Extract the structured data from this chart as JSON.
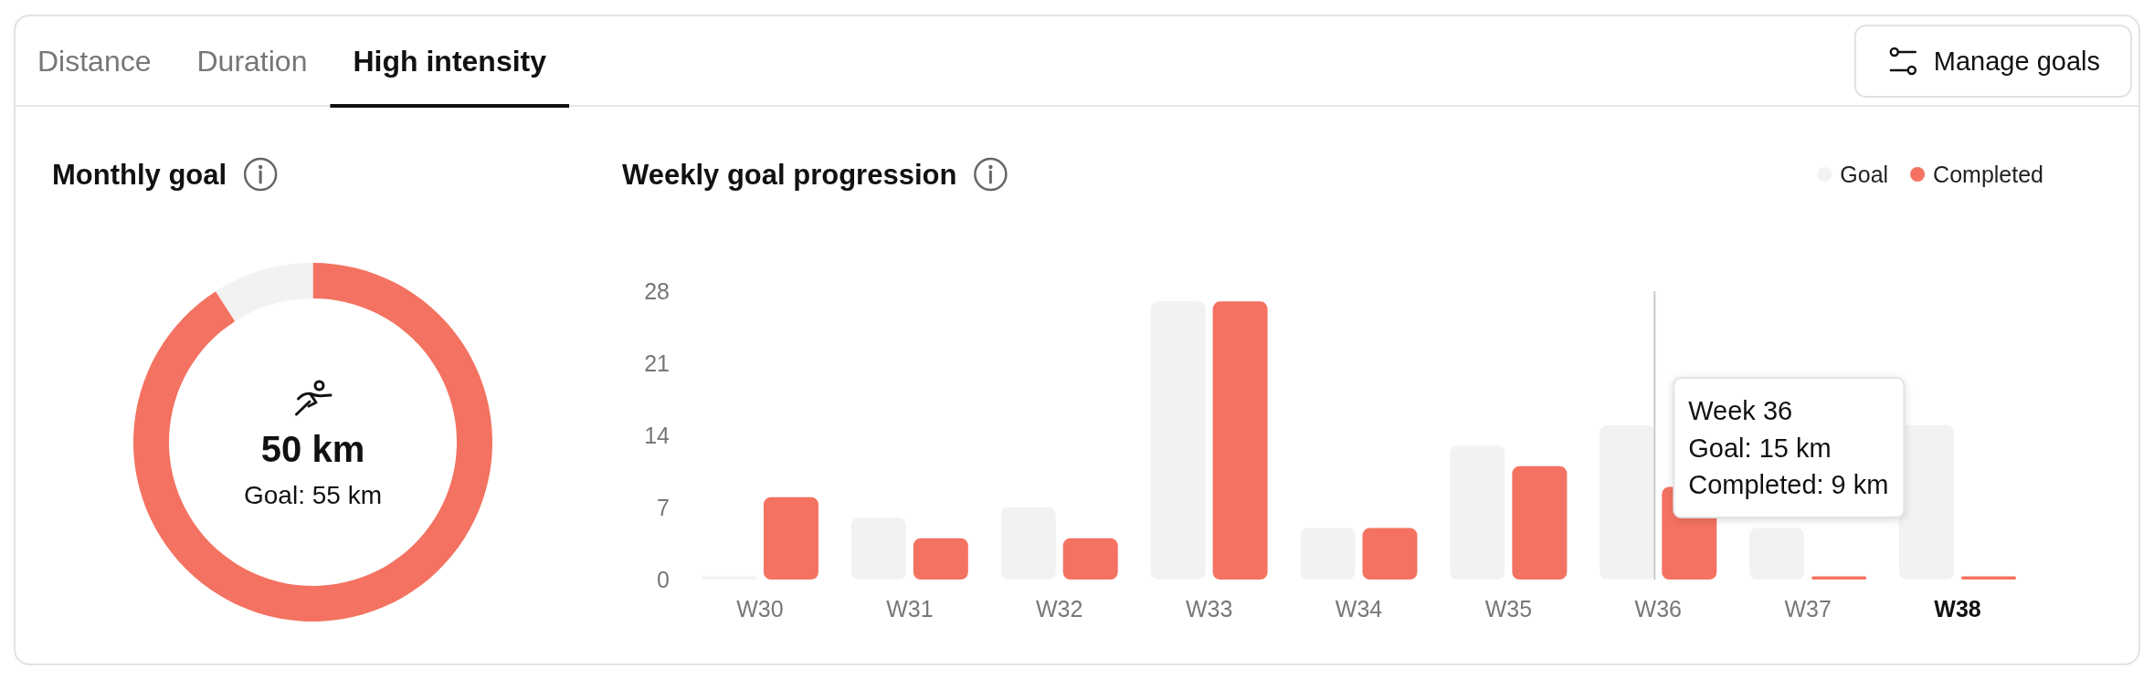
{
  "chart_data": [
    {
      "type": "other",
      "annotations": [
        "Distance",
        "Duration",
        "High intensity",
        "Manage goals"
      ]
    },
    {
      "type": "donut",
      "title": "Monthly goal",
      "categories": [
        null,
        null
      ],
      "values": [
        90.9,
        9.1
      ],
      "colors": [
        "#f47261",
        "#f2f2f2"
      ],
      "annotations": [
        "50 km",
        "Goal: 55 km"
      ]
    },
    {
      "type": "bar",
      "title": "Weekly goal progression",
      "categories": [
        "W30",
        "W31",
        "W32",
        "W33",
        "W34",
        "W35",
        "W36",
        "W37",
        "W38"
      ],
      "series": [
        {
          "name": "Goal",
          "color": "#f2f2f2",
          "values": [
            0.3,
            6,
            7,
            27,
            5,
            13,
            15,
            5,
            15
          ]
        },
        {
          "name": "Completed",
          "color": "#f47261",
          "values": [
            8,
            4,
            4,
            27,
            5,
            11,
            9,
            0.3,
            0.3
          ]
        }
      ],
      "ylim": [
        0,
        28
      ],
      "yticks": [
        0,
        7,
        14,
        21,
        28
      ],
      "legend": "top right",
      "ref_lines": [
        {
          "axis": "x",
          "value": "W36",
          "color": "#c8c8c8"
        }
      ],
      "annotations": [
        {
          "text": "Week 36\nGoal: 15 km\nCompleted: 9 km",
          "x": "W36"
        }
      ]
    }
  ]
}
